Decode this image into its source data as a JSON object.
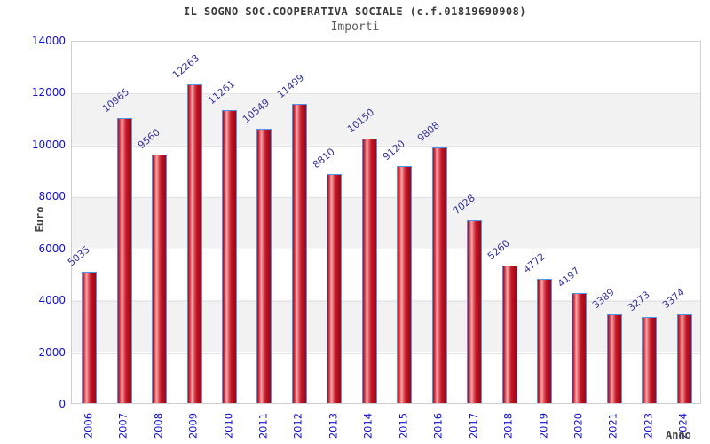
{
  "header": {
    "title": "IL SOGNO SOC.COOPERATIVA SOCIALE (c.f.01819690908)",
    "subtitle": "Importi"
  },
  "chart_data": {
    "type": "bar",
    "title": "IL SOGNO SOC.COOPERATIVA SOCIALE (c.f.01819690908)",
    "subtitle": "Importi",
    "xlabel": "Anno",
    "ylabel": "Euro",
    "categories": [
      "2006",
      "2007",
      "2008",
      "2009",
      "2010",
      "2011",
      "2012",
      "2013",
      "2014",
      "2015",
      "2016",
      "2017",
      "2018",
      "2019",
      "2020",
      "2021",
      "2023",
      "2024"
    ],
    "values": [
      5035,
      10965,
      9560,
      12263,
      11261,
      10549,
      11499,
      8810,
      10150,
      9120,
      9808,
      7028,
      5260,
      4772,
      4197,
      3389,
      3273,
      3374
    ],
    "ylim": [
      0,
      14000
    ],
    "ytick_step": 2000,
    "yticks": [
      0,
      2000,
      4000,
      6000,
      8000,
      10000,
      12000,
      14000
    ],
    "legend": null,
    "grid": "horizontal-bands",
    "colors": {
      "bar_fill_dark": "#a80b1b",
      "bar_fill_light": "#f7adad",
      "bar_border": "#4d94ea",
      "tick_label": "#1010d0",
      "value_label": "#33339b",
      "band_gray": "#f2f2f2",
      "plot_border": "#cfcfcf",
      "title_color": "#3a3a3a"
    }
  }
}
